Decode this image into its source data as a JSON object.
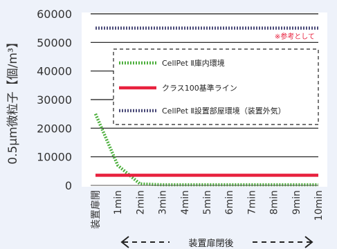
{
  "chart_data": {
    "type": "line",
    "ylabel": "0.5µm微粒子【個/m³】",
    "ylim": [
      0,
      60000
    ],
    "yticks": [
      0,
      10000,
      20000,
      30000,
      40000,
      50000,
      60000
    ],
    "categories": [
      "装置扉開",
      "1min",
      "2min",
      "3min",
      "4min",
      "5min",
      "6min",
      "7min",
      "8min",
      "9min",
      "10min"
    ],
    "x_caption": "装置扉閉後",
    "annotation": "※参考として",
    "grid": true,
    "legend_position": "inside-upper-right",
    "series": [
      {
        "name": "CellPet Ⅱ庫内環境",
        "color": "#4caf3c",
        "style": "dotted",
        "values": [
          25000,
          7000,
          500,
          200,
          200,
          200,
          200,
          200,
          200,
          200,
          200
        ]
      },
      {
        "name": "クラス100基準ライン",
        "color": "#e8213e",
        "style": "solid",
        "values": [
          3530,
          3530,
          3530,
          3530,
          3530,
          3530,
          3530,
          3530,
          3530,
          3530,
          3530
        ]
      },
      {
        "name": "CellPet Ⅱ設置部屋環境（装置外気）",
        "color": "#4a4a78",
        "style": "dotted",
        "values": [
          55000,
          55000,
          55000,
          55000,
          55000,
          55000,
          55000,
          55000,
          55000,
          55000,
          55000
        ]
      }
    ]
  }
}
